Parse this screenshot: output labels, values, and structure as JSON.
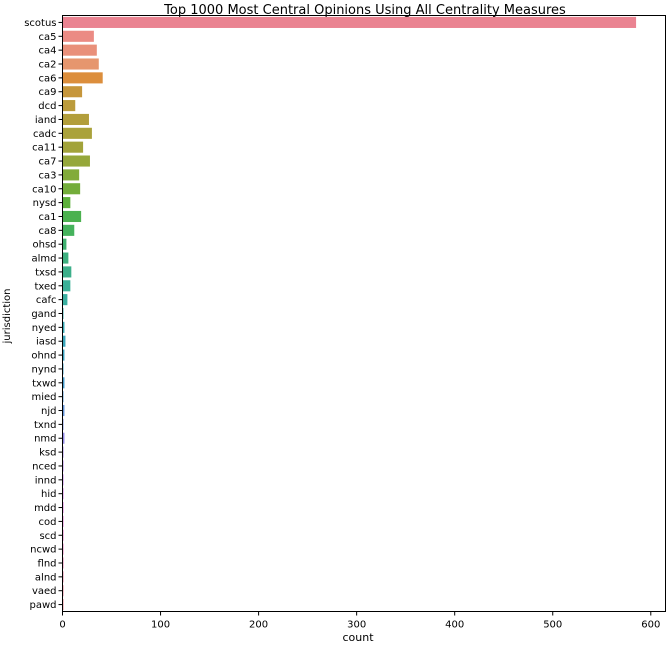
{
  "chart_data": {
    "type": "bar",
    "orientation": "horizontal",
    "title": "Top 1000 Most Central Opinions Using All Centrality Measures",
    "xlabel": "count",
    "ylabel": "jurisdiction",
    "xlim": [
      0,
      615
    ],
    "xticks": [
      0,
      100,
      200,
      300,
      400,
      500,
      600
    ],
    "grid": false,
    "categories": [
      "scotus",
      "ca5",
      "ca4",
      "ca2",
      "ca6",
      "ca9",
      "dcd",
      "iand",
      "cadc",
      "ca11",
      "ca7",
      "ca3",
      "ca10",
      "nysd",
      "ca1",
      "ca8",
      "ohsd",
      "almd",
      "txsd",
      "txed",
      "cafc",
      "gand",
      "nyed",
      "iasd",
      "ohnd",
      "nynd",
      "txwd",
      "mied",
      "njd",
      "txnd",
      "nmd",
      "ksd",
      "nced",
      "innd",
      "hid",
      "mdd",
      "cod",
      "scd",
      "ncwd",
      "flnd",
      "alnd",
      "vaed",
      "pawd"
    ],
    "values": [
      585,
      32,
      35,
      37,
      41,
      20,
      13,
      27,
      30,
      21,
      28,
      17,
      18,
      8,
      19,
      12,
      4,
      6,
      9,
      8,
      5,
      1,
      2,
      3,
      2,
      1,
      2,
      1,
      2,
      1,
      2,
      1,
      1,
      1,
      1,
      1,
      1,
      1,
      1,
      1,
      1,
      1,
      1
    ],
    "colors": [
      "#ea8391",
      "#eb8b84",
      "#e9907a",
      "#e6966e",
      "#dc8e3c",
      "#c6963b",
      "#bb9b3b",
      "#b29e3b",
      "#aaa23b",
      "#a2a33a",
      "#95a73a",
      "#82ab3a",
      "#73ad3a",
      "#5db13b",
      "#4bb14f",
      "#45b25c",
      "#3fb06f",
      "#3eaf7f",
      "#3daf8a",
      "#3ab097",
      "#3aafa0",
      "#3aadae",
      "#3aa9b5",
      "#3ca6bb",
      "#3ea3c0",
      "#419fc5",
      "#469bcb",
      "#5197d3",
      "#6695d9",
      "#7c90df",
      "#9289e6",
      "#a484ea",
      "#b37ded",
      "#c17aed",
      "#d475e7",
      "#df70e0",
      "#e571d5",
      "#e973c8",
      "#e977bb",
      "#e97aad",
      "#ea7ca0",
      "#ea7f96",
      "#ea818e"
    ]
  }
}
